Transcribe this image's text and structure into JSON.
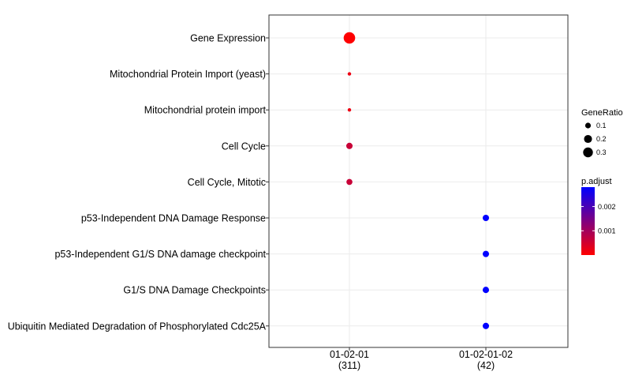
{
  "chart_data": {
    "type": "scatter",
    "title": "",
    "xlabel": "",
    "ylabel": "",
    "categories_x": [
      {
        "label": "01-02-01",
        "count": "(311)"
      },
      {
        "label": "01-02-01-02",
        "count": "(42)"
      }
    ],
    "categories_y": [
      "Gene Expression",
      "Mitochondrial Protein Import (yeast)",
      "Mitochondrial protein import",
      "Cell Cycle",
      "Cell Cycle, Mitotic",
      "p53-Independent DNA Damage Response",
      "p53-Independent G1/S DNA damage checkpoint",
      "G1/S DNA Damage Checkpoints",
      "Ubiquitin Mediated Degradation of Phosphorylated Cdc25A"
    ],
    "points": [
      {
        "x": "01-02-01",
        "y": "Gene Expression",
        "gene_ratio": 0.33,
        "p_adjust": 1e-05
      },
      {
        "x": "01-02-01",
        "y": "Mitochondrial Protein Import (yeast)",
        "gene_ratio": 0.03,
        "p_adjust": 0.0002
      },
      {
        "x": "01-02-01",
        "y": "Mitochondrial protein import",
        "gene_ratio": 0.03,
        "p_adjust": 0.0002
      },
      {
        "x": "01-02-01",
        "y": "Cell Cycle",
        "gene_ratio": 0.1,
        "p_adjust": 0.0006
      },
      {
        "x": "01-02-01",
        "y": "Cell Cycle, Mitotic",
        "gene_ratio": 0.09,
        "p_adjust": 0.0006
      },
      {
        "x": "01-02-01-02",
        "y": "p53-Independent DNA Damage Response",
        "gene_ratio": 0.1,
        "p_adjust": 0.0028
      },
      {
        "x": "01-02-01-02",
        "y": "p53-Independent G1/S DNA damage checkpoint",
        "gene_ratio": 0.1,
        "p_adjust": 0.0028
      },
      {
        "x": "01-02-01-02",
        "y": "G1/S DNA Damage Checkpoints",
        "gene_ratio": 0.1,
        "p_adjust": 0.0028
      },
      {
        "x": "01-02-01-02",
        "y": "Ubiquitin Mediated Degradation of Phosphorylated Cdc25A",
        "gene_ratio": 0.1,
        "p_adjust": 0.0028
      }
    ],
    "grid": true,
    "legend_placement": "right",
    "size_legend": {
      "title": "GeneRatio",
      "breaks": [
        0.1,
        0.2,
        0.3
      ],
      "labels": [
        "0.1",
        "0.2",
        "0.3"
      ]
    },
    "color_legend": {
      "title": "p.adjust",
      "range": [
        0,
        0.0028
      ],
      "breaks": [
        0.001,
        0.002
      ],
      "labels": [
        "0.001",
        "0.002"
      ],
      "low_color": "#ff0000",
      "high_color": "#0000ff"
    }
  }
}
